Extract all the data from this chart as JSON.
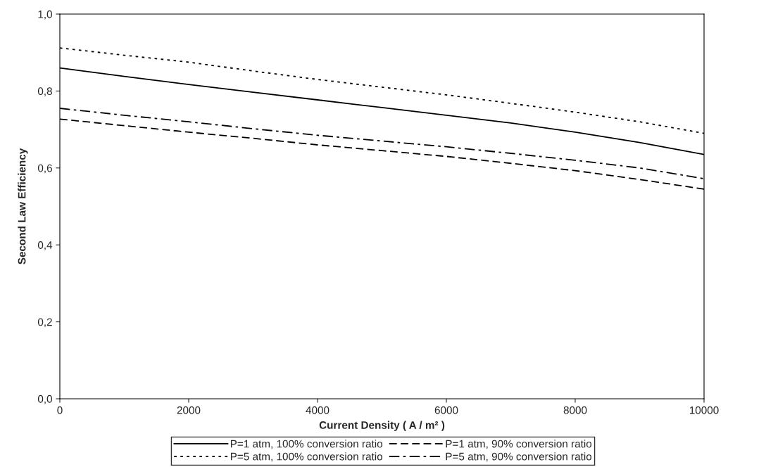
{
  "chart_data": {
    "type": "line",
    "xlabel": "Current Density ( A / m² )",
    "ylabel": "Second Law Efficiency",
    "x": [
      0,
      1000,
      2000,
      3000,
      4000,
      5000,
      6000,
      7000,
      8000,
      9000,
      10000
    ],
    "series": [
      {
        "name": "P=1 atm, 100% conversion ratio",
        "color": "#000000",
        "line_style": "solid",
        "values": [
          0.86,
          0.838,
          0.817,
          0.797,
          0.777,
          0.757,
          0.737,
          0.717,
          0.693,
          0.666,
          0.635
        ]
      },
      {
        "name": "P=1 atm, 90% conversion ratio",
        "color": "#000000",
        "line_style": "dashed",
        "values": [
          0.727,
          0.71,
          0.693,
          0.677,
          0.66,
          0.645,
          0.63,
          0.612,
          0.593,
          0.57,
          0.545
        ]
      },
      {
        "name": "P=5 atm, 100% conversion ratio",
        "color": "#000000",
        "line_style": "dotted",
        "values": [
          0.912,
          0.893,
          0.875,
          0.852,
          0.83,
          0.81,
          0.79,
          0.768,
          0.745,
          0.72,
          0.69
        ]
      },
      {
        "name": "P=5 atm, 90% conversion ratio",
        "color": "#000000",
        "line_style": "dashdot",
        "values": [
          0.755,
          0.737,
          0.72,
          0.702,
          0.685,
          0.67,
          0.655,
          0.638,
          0.62,
          0.6,
          0.572
        ]
      }
    ],
    "xlim": [
      0,
      10000
    ],
    "xticks": [
      0,
      2000,
      4000,
      6000,
      8000,
      10000
    ],
    "ylim": [
      0,
      1
    ],
    "yticks": [
      {
        "value": 0,
        "label": "0,0"
      },
      {
        "value": 0.2,
        "label": "0,2"
      },
      {
        "value": 0.4,
        "label": "0,4"
      },
      {
        "value": 0.6,
        "label": "0,6"
      },
      {
        "value": 0.8,
        "label": "0,8"
      },
      {
        "value": 1,
        "label": "1,0"
      }
    ],
    "grid": false,
    "legend": "bottom",
    "marker": "none"
  }
}
